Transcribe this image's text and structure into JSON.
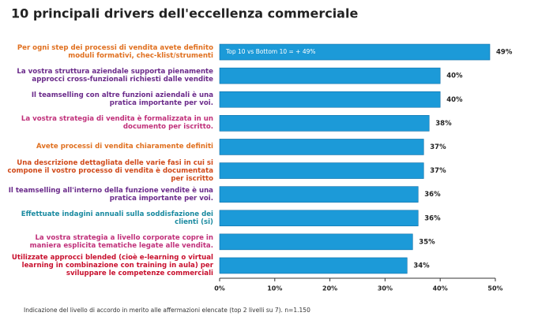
{
  "chart_data": {
    "type": "bar",
    "orientation": "horizontal",
    "title": "10 principali drivers dell'eccellenza commerciale",
    "annotation": "Top 10 vs Bottom 10 = + 49%",
    "footnote": "Indicazione del livello di accordo in merito alle affermazioni elencate (top 2 livelli su 7). n=1.150",
    "categories": [
      "Per ogni step dei processi di vendita avete definito moduli formativi, chec-klist/strumenti",
      "La vostra struttura aziendale supporta pienamente approcci cross-funzionali richiesti dalle vendite",
      "Il teamselling con altre funzioni aziendali è una pratica importante per voi.",
      "La vostra strategia di vendita è formalizzata in un documento per iscritto.",
      "Avete processi di vendita chiaramente definiti",
      "Una descrizione dettagliata delle varie fasi in cui si compone il vostro processo di vendita è documentata per iscritto",
      "Il teamselling all'interno della funzione vendite è una pratica importante per voi.",
      "Effettuate indagini annuali  sulla soddisfazione dei clienti (si)",
      "La vostra strategia a livello corporate copre in maniera esplicita tematiche legate alle vendita.",
      "Utilizzate approcci blended (cioè e-learning o virtual learning in combinazione con training in aula) per sviluppare le competenze commerciali"
    ],
    "label_colors": [
      "#e07020",
      "#6a2a8a",
      "#6a2a8a",
      "#c0307a",
      "#e07020",
      "#d04a1a",
      "#6a2a8a",
      "#1a8aa0",
      "#c0307a",
      "#c8102e"
    ],
    "values": [
      49,
      40,
      40,
      38,
      37,
      37,
      36,
      36,
      35,
      34
    ],
    "value_labels": [
      "49%",
      "40%",
      "40%",
      "38%",
      "37%",
      "37%",
      "36%",
      "36%",
      "35%",
      "34%"
    ],
    "color": "#1c9ad8",
    "xlim": [
      0,
      50
    ],
    "xticks": [
      {
        "value": 0,
        "label": "0%"
      },
      {
        "value": 10,
        "label": "10%"
      },
      {
        "value": 20,
        "label": "20%"
      },
      {
        "value": 30,
        "label": "30%"
      },
      {
        "value": 40,
        "label": "40%"
      },
      {
        "value": 50,
        "label": "50%"
      }
    ]
  }
}
